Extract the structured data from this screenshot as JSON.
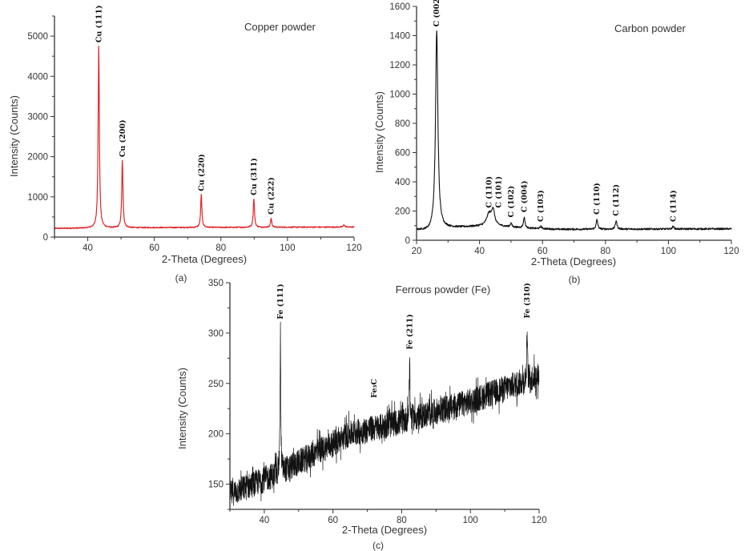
{
  "chart_data": [
    {
      "id": "a",
      "type": "line",
      "title": "Copper powder",
      "panel_label": "(a)",
      "xlabel": "2-Theta (Degrees)",
      "ylabel": "Intensity (Counts)",
      "xlim": [
        30,
        120
      ],
      "ylim": [
        0,
        5500
      ],
      "xticks": [
        40,
        60,
        80,
        100,
        120
      ],
      "yticks": [
        0,
        1000,
        2000,
        3000,
        4000,
        5000
      ],
      "grid": false,
      "color": "#e0262b",
      "baseline": [
        [
          30,
          215
        ],
        [
          60,
          235
        ],
        [
          120,
          250
        ]
      ],
      "peaks": [
        {
          "x": 43.3,
          "y": 4780
        },
        {
          "x": 50.4,
          "y": 1900
        },
        {
          "x": 74.1,
          "y": 1060
        },
        {
          "x": 89.9,
          "y": 960
        },
        {
          "x": 95.1,
          "y": 470
        },
        {
          "x": 117.0,
          "y": 310
        }
      ],
      "annotations": [
        {
          "text": "Cu (111)",
          "x": 43.3,
          "y": 4800
        },
        {
          "text": "Cu (200)",
          "x": 50.4,
          "y": 1950
        },
        {
          "text": "Cu (220)",
          "x": 74.1,
          "y": 1100
        },
        {
          "text": "Cu (311)",
          "x": 89.9,
          "y": 1000
        },
        {
          "text": "Cu (222)",
          "x": 95.1,
          "y": 520
        }
      ]
    },
    {
      "id": "b",
      "type": "line",
      "title": "Carbon powder",
      "panel_label": "(b)",
      "xlabel": "2-Theta (Degrees)",
      "ylabel": "Intensity (Counts)",
      "xlim": [
        20,
        120
      ],
      "ylim": [
        0,
        1600
      ],
      "xticks": [
        20,
        40,
        60,
        80,
        100,
        120
      ],
      "yticks": [
        0,
        200,
        400,
        600,
        800,
        1000,
        1200,
        1400,
        1600
      ],
      "grid": false,
      "color": "#111111",
      "baseline": [
        [
          20,
          70
        ],
        [
          24,
          62
        ],
        [
          26,
          80
        ],
        [
          30,
          85
        ],
        [
          40,
          95
        ],
        [
          46,
          95
        ],
        [
          55,
          82
        ],
        [
          65,
          75
        ],
        [
          120,
          78
        ]
      ],
      "peaks": [
        {
          "x": 26.4,
          "y": 1430
        },
        {
          "x": 43.0,
          "y": 175
        },
        {
          "x": 44.3,
          "y": 200
        },
        {
          "x": 50.0,
          "y": 115
        },
        {
          "x": 54.2,
          "y": 155
        },
        {
          "x": 59.5,
          "y": 95
        },
        {
          "x": 77.3,
          "y": 140
        },
        {
          "x": 83.4,
          "y": 135
        },
        {
          "x": 101.5,
          "y": 95
        }
      ],
      "annotations": [
        {
          "text": "C (002)",
          "x": 26.4,
          "y": 1450
        },
        {
          "text": "C (110)",
          "x": 43.0,
          "y": 210
        },
        {
          "text": "C (101)",
          "x": 44.6,
          "y": 210
        },
        {
          "text": "C (102)",
          "x": 50.0,
          "y": 145
        },
        {
          "text": "C (004)",
          "x": 54.2,
          "y": 180
        },
        {
          "text": "C (103)",
          "x": 59.5,
          "y": 115
        },
        {
          "text": "C (110)",
          "x": 77.3,
          "y": 165
        },
        {
          "text": "C (112)",
          "x": 83.4,
          "y": 155
        },
        {
          "text": "C (114)",
          "x": 101.5,
          "y": 115
        }
      ]
    },
    {
      "id": "c",
      "type": "line",
      "title": "Ferrous powder (Fe)",
      "panel_label": "(c)",
      "xlabel": "2-Theta (Degrees)",
      "ylabel": "Intensity (Counts)",
      "xlim": [
        30,
        120
      ],
      "ylim": [
        125,
        350
      ],
      "xticks": [
        40,
        60,
        80,
        100,
        120
      ],
      "yticks": [
        150,
        200,
        250,
        300,
        350
      ],
      "grid": false,
      "color": "#111111",
      "baseline": [
        [
          30,
          140
        ],
        [
          45,
          162
        ],
        [
          65,
          200
        ],
        [
          80,
          212
        ],
        [
          100,
          232
        ],
        [
          120,
          258
        ]
      ],
      "peaks": [
        {
          "x": 44.7,
          "y": 307
        },
        {
          "x": 82.3,
          "y": 277
        },
        {
          "x": 116.5,
          "y": 308
        }
      ],
      "annotations": [
        {
          "text": "Fe (111)",
          "x": 44.7,
          "y": 312
        },
        {
          "text": "Fe₃C",
          "x": 72.0,
          "y": 234
        },
        {
          "text": "Fe (211)",
          "x": 82.3,
          "y": 282
        },
        {
          "text": "Fe (310)",
          "x": 116.5,
          "y": 313
        }
      ]
    }
  ]
}
